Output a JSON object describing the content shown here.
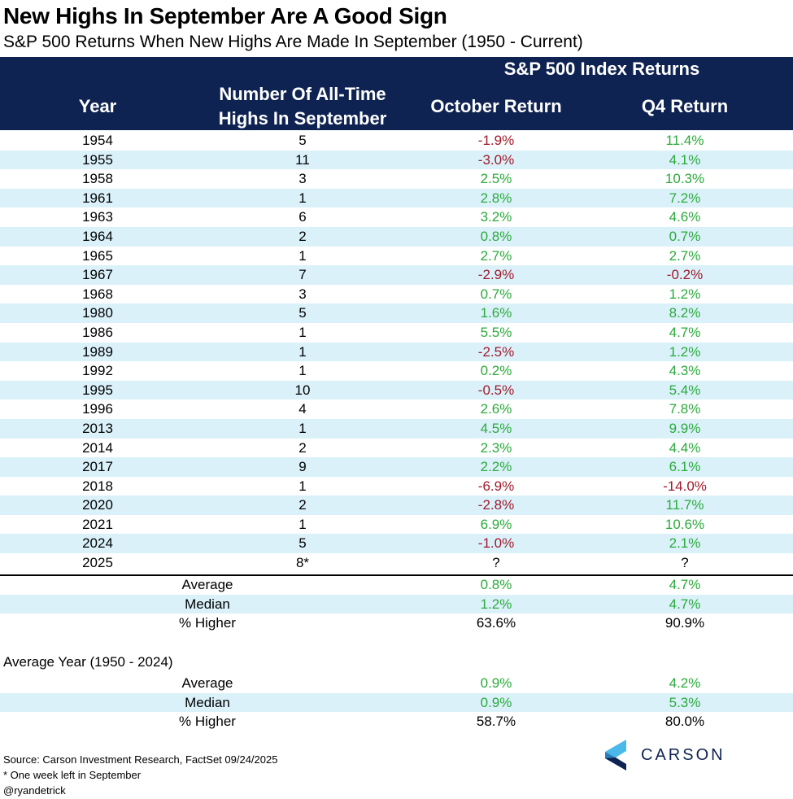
{
  "chart_data": {
    "type": "table",
    "title": "New Highs In September Are A Good Sign",
    "subtitle": "S&P 500 Returns When New Highs Are Made In September (1950 - Current)",
    "header": {
      "group": "S&P 500 Index Returns",
      "year": "Year",
      "num_line1": "Number Of All-Time",
      "num_line2": "Highs In September",
      "oct": "October Return",
      "q4": "Q4 Return"
    },
    "rows": [
      {
        "year": "1954",
        "num": "5",
        "oct": "-1.9%",
        "q4": "11.4%"
      },
      {
        "year": "1955",
        "num": "11",
        "oct": "-3.0%",
        "q4": "4.1%"
      },
      {
        "year": "1958",
        "num": "3",
        "oct": "2.5%",
        "q4": "10.3%"
      },
      {
        "year": "1961",
        "num": "1",
        "oct": "2.8%",
        "q4": "7.2%"
      },
      {
        "year": "1963",
        "num": "6",
        "oct": "3.2%",
        "q4": "4.6%"
      },
      {
        "year": "1964",
        "num": "2",
        "oct": "0.8%",
        "q4": "0.7%"
      },
      {
        "year": "1965",
        "num": "1",
        "oct": "2.7%",
        "q4": "2.7%"
      },
      {
        "year": "1967",
        "num": "7",
        "oct": "-2.9%",
        "q4": "-0.2%"
      },
      {
        "year": "1968",
        "num": "3",
        "oct": "0.7%",
        "q4": "1.2%"
      },
      {
        "year": "1980",
        "num": "5",
        "oct": "1.6%",
        "q4": "8.2%"
      },
      {
        "year": "1986",
        "num": "1",
        "oct": "5.5%",
        "q4": "4.7%"
      },
      {
        "year": "1989",
        "num": "1",
        "oct": "-2.5%",
        "q4": "1.2%"
      },
      {
        "year": "1992",
        "num": "1",
        "oct": "0.2%",
        "q4": "4.3%"
      },
      {
        "year": "1995",
        "num": "10",
        "oct": "-0.5%",
        "q4": "5.4%"
      },
      {
        "year": "1996",
        "num": "4",
        "oct": "2.6%",
        "q4": "7.8%"
      },
      {
        "year": "2013",
        "num": "1",
        "oct": "4.5%",
        "q4": "9.9%"
      },
      {
        "year": "2014",
        "num": "2",
        "oct": "2.3%",
        "q4": "4.4%"
      },
      {
        "year": "2017",
        "num": "9",
        "oct": "2.2%",
        "q4": "6.1%"
      },
      {
        "year": "2018",
        "num": "1",
        "oct": "-6.9%",
        "q4": "-14.0%"
      },
      {
        "year": "2020",
        "num": "2",
        "oct": "-2.8%",
        "q4": "11.7%"
      },
      {
        "year": "2021",
        "num": "1",
        "oct": "6.9%",
        "q4": "10.6%"
      },
      {
        "year": "2024",
        "num": "5",
        "oct": "-1.0%",
        "q4": "2.1%"
      },
      {
        "year": "2025",
        "num": "8*",
        "oct": "?",
        "q4": "?"
      }
    ],
    "summary": [
      {
        "label": "Average",
        "oct": "0.8%",
        "q4": "4.7%",
        "style": "pos"
      },
      {
        "label": "Median",
        "oct": "1.2%",
        "q4": "4.7%",
        "style": "pos"
      },
      {
        "label": "% Higher",
        "oct": "63.6%",
        "q4": "90.9%",
        "style": "plain"
      }
    ],
    "average_year": {
      "title": "Average Year (1950 - 2024)",
      "rows": [
        {
          "label": "Average",
          "oct": "0.9%",
          "q4": "4.2%",
          "style": "pos"
        },
        {
          "label": "Median",
          "oct": "0.9%",
          "q4": "5.3%",
          "style": "pos"
        },
        {
          "label": "% Higher",
          "oct": "58.7%",
          "q4": "80.0%",
          "style": "plain"
        }
      ]
    }
  },
  "footer": {
    "source": "Source: Carson Investment Research, FactSet 09/24/2025",
    "note": "* One week left in September",
    "handle": "@ryandetrick"
  },
  "logo": {
    "text": "CARSON"
  },
  "colors": {
    "header_bg": "#0F2352",
    "positive": "#2BAA3B",
    "negative": "#A01A2A",
    "stripe": "#DAF1FA"
  }
}
